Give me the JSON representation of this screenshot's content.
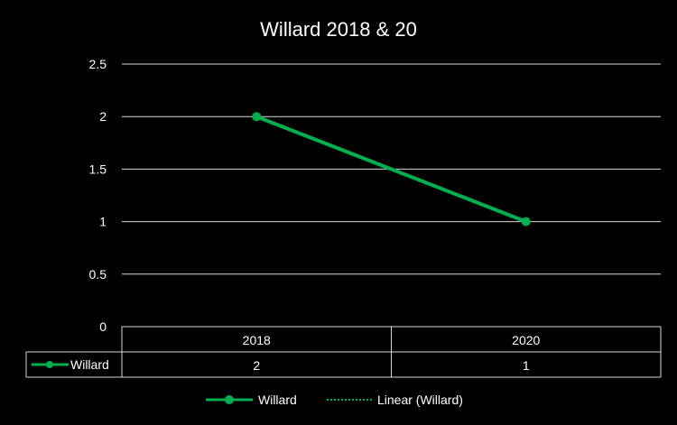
{
  "chart_data": {
    "type": "line",
    "title": "Willard 2018 & 20",
    "categories": [
      "2018",
      "2020"
    ],
    "series": [
      {
        "name": "Willard",
        "values": [
          2,
          1
        ],
        "color": "#00b050"
      }
    ],
    "trendline": {
      "name": "Linear (Willard)",
      "type": "linear",
      "color": "#00b050",
      "style": "dotted"
    },
    "ylim": [
      0,
      2.5
    ],
    "yticks": [
      "0",
      "0.5",
      "1",
      "1.5",
      "2",
      "2.5"
    ],
    "grid": true,
    "data_table": true,
    "legend_position": "bottom",
    "background": "#000000"
  }
}
